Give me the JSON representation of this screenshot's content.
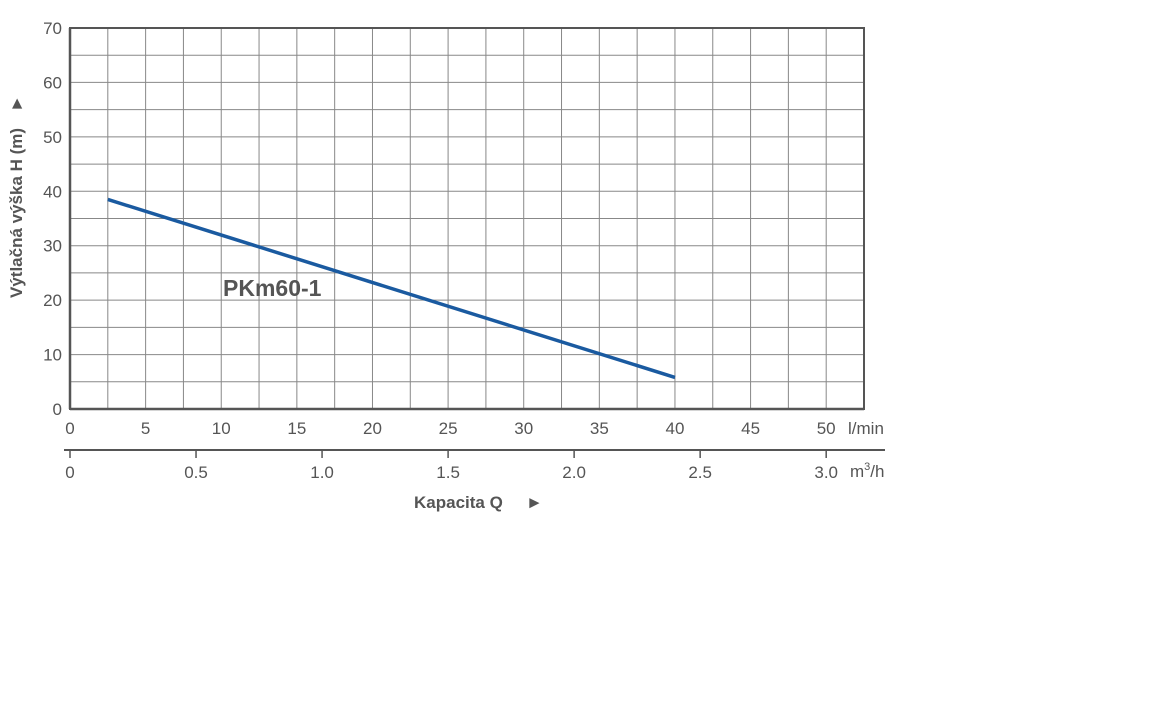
{
  "chart_data": {
    "type": "line",
    "title": "",
    "ylabel": "Výtlačná výška H (m)",
    "ylabel_arrow": "►",
    "xlabel": "Kapacita Q",
    "xlabel_arrow": "►",
    "ylim": [
      0,
      70
    ],
    "xlim": [
      0,
      52.5
    ],
    "grid": true,
    "y_ticks": [
      "0",
      "10",
      "20",
      "30",
      "40",
      "50",
      "60",
      "70"
    ],
    "y_tick_values": [
      0,
      10,
      20,
      30,
      40,
      50,
      60,
      70
    ],
    "x_ticks": [
      "0",
      "5",
      "10",
      "15",
      "20",
      "25",
      "30",
      "35",
      "40",
      "45",
      "50"
    ],
    "x_tick_values": [
      0,
      5,
      10,
      15,
      20,
      25,
      30,
      35,
      40,
      45,
      50
    ],
    "x_unit": "l/min",
    "x2_ticks": [
      "0",
      "0.5",
      "1.0",
      "1.5",
      "2.0",
      "2.5",
      "3.0"
    ],
    "x2_tick_values": [
      0,
      0.5,
      1.0,
      1.5,
      2.0,
      2.5,
      3.0
    ],
    "x2_unit_base": "m",
    "x2_unit_sup": "3",
    "x2_unit_tail": "/h",
    "series": [
      {
        "name": "PKm60-1",
        "color": "#1a5aa0",
        "x": [
          2.5,
          40
        ],
        "y": [
          38.5,
          5.8
        ]
      }
    ],
    "colors": {
      "grid": "#888888",
      "axis": "#555555",
      "text": "#555555"
    }
  }
}
